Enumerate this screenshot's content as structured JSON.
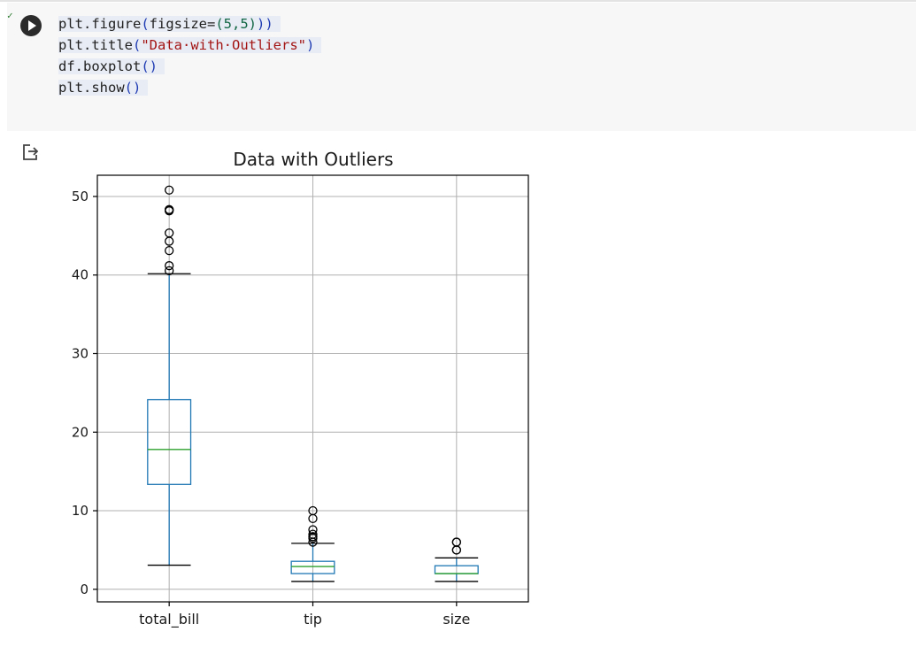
{
  "cell": {
    "exec_mark": "✓",
    "code_lines": [
      [
        {
          "t": "plt.figure",
          "c": "cfn"
        },
        {
          "t": "(",
          "c": "cpar"
        },
        {
          "t": "figsize=",
          "c": "cfn"
        },
        {
          "t": "(5,5)",
          "c": "cnum"
        },
        {
          "t": "))",
          "c": "cpar"
        }
      ],
      [
        {
          "t": "plt.title",
          "c": "cfn"
        },
        {
          "t": "(",
          "c": "cpar"
        },
        {
          "t": "\"Data·with·Outliers\"",
          "c": "cstr"
        },
        {
          "t": ")",
          "c": "cpar"
        }
      ],
      [
        {
          "t": "df.boxplot",
          "c": "cfn"
        },
        {
          "t": "()",
          "c": "cpar"
        }
      ],
      [
        {
          "t": "plt.show",
          "c": "cfn"
        },
        {
          "t": "()",
          "c": "cpar"
        }
      ]
    ]
  },
  "output": {
    "icon": "output-redirect-icon"
  },
  "chart_data": {
    "type": "boxplot",
    "title": "Data with Outliers",
    "xlabel": "",
    "ylabel": "",
    "ylim": [
      -1.6,
      52.7
    ],
    "yticks": [
      0,
      10,
      20,
      30,
      40,
      50
    ],
    "grid": true,
    "categories": [
      "total_bill",
      "tip",
      "size"
    ],
    "boxes": [
      {
        "name": "total_bill",
        "whisker_low": 3.07,
        "q1": 13.35,
        "median": 17.8,
        "q3": 24.13,
        "whisker_high": 40.17,
        "outliers": [
          40.55,
          41.19,
          43.11,
          44.3,
          45.35,
          48.17,
          48.27,
          48.33,
          50.81
        ]
      },
      {
        "name": "tip",
        "whisker_low": 1.0,
        "q1": 2.0,
        "median": 2.9,
        "q3": 3.56,
        "whisker_high": 5.85,
        "outliers": [
          6.0,
          6.5,
          6.7,
          7.0,
          7.58,
          9.0,
          10.0
        ]
      },
      {
        "name": "size",
        "whisker_low": 1.0,
        "q1": 2.0,
        "median": 2.0,
        "q3": 3.0,
        "whisker_high": 4.0,
        "outliers": [
          5.0,
          5.0,
          6.0,
          6.0
        ]
      }
    ],
    "colors": {
      "box": "#1f77b4",
      "median": "#2ca02c",
      "whisker_cap": "#000000",
      "grid": "#b0b0b0"
    }
  }
}
